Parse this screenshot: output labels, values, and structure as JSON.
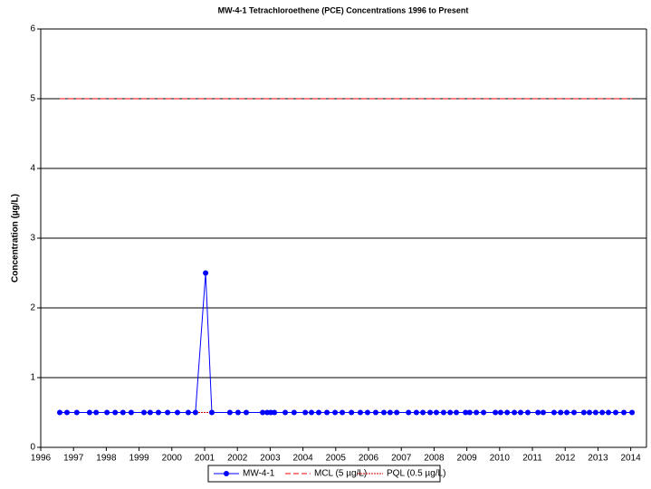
{
  "chart_data": {
    "type": "line",
    "title": "MW-4-1 Tetrachloroethene (PCE) Concentrations 1996 to Present",
    "y_label": "Concentration (µg/L)",
    "xlim": [
      1996,
      2014.48
    ],
    "xticks": [
      1996,
      1997,
      1998,
      1999,
      2000,
      2001,
      2002,
      2003,
      2004,
      2005,
      2006,
      2007,
      2008,
      2009,
      2010,
      2011,
      2012,
      2013,
      2014
    ],
    "ylim": [
      0,
      6
    ],
    "yticks": [
      0,
      1,
      2,
      3,
      4,
      5,
      6
    ],
    "grid": true,
    "legend": "bottom",
    "series": [
      {
        "name": "MW-4-1",
        "color": "#0000ff",
        "style": "solid",
        "marker": true,
        "x": [
          1996.58,
          1996.8,
          1997.1,
          1997.49,
          1997.69,
          1998.02,
          1998.27,
          1998.51,
          1998.76,
          1999.15,
          1999.34,
          1999.59,
          1999.87,
          2000.17,
          2000.5,
          2000.72,
          2001.03,
          2001.22,
          2001.77,
          2002.02,
          2002.27,
          2002.77,
          2002.91,
          2003.02,
          2003.13,
          2003.46,
          2003.73,
          2004.07,
          2004.26,
          2004.48,
          2004.73,
          2004.98,
          2005.2,
          2005.48,
          2005.75,
          2005.97,
          2006.22,
          2006.47,
          2006.66,
          2006.86,
          2007.22,
          2007.46,
          2007.66,
          2007.88,
          2008.07,
          2008.29,
          2008.49,
          2008.68,
          2008.96,
          2009.09,
          2009.29,
          2009.51,
          2009.87,
          2010.03,
          2010.23,
          2010.45,
          2010.64,
          2010.86,
          2011.17,
          2011.33,
          2011.66,
          2011.86,
          2012.05,
          2012.27,
          2012.57,
          2012.74,
          2012.93,
          2013.13,
          2013.32,
          2013.54,
          2013.79,
          2014.04
        ],
        "values": [
          0.5,
          0.5,
          0.5,
          0.5,
          0.5,
          0.5,
          0.5,
          0.5,
          0.5,
          0.5,
          0.5,
          0.5,
          0.5,
          0.5,
          0.5,
          0.5,
          2.5,
          0.5,
          0.5,
          0.5,
          0.5,
          0.5,
          0.5,
          0.5,
          0.5,
          0.5,
          0.5,
          0.5,
          0.5,
          0.5,
          0.5,
          0.5,
          0.5,
          0.5,
          0.5,
          0.5,
          0.5,
          0.5,
          0.5,
          0.5,
          0.5,
          0.5,
          0.5,
          0.5,
          0.5,
          0.5,
          0.5,
          0.5,
          0.5,
          0.5,
          0.5,
          0.5,
          0.5,
          0.5,
          0.5,
          0.5,
          0.5,
          0.5,
          0.5,
          0.5,
          0.5,
          0.5,
          0.5,
          0.5,
          0.5,
          0.5,
          0.5,
          0.5,
          0.5,
          0.5,
          0.5,
          0.5
        ]
      },
      {
        "name": "MCL (5 µg/L)",
        "color": "#ff0000",
        "style": "dashed",
        "marker": false,
        "x": [
          1996.58,
          2014.04
        ],
        "values": [
          5,
          5
        ]
      },
      {
        "name": "PQL (0.5 µg/L)",
        "color": "#cc0000",
        "style": "dotted",
        "marker": false,
        "x": [
          1996.58,
          2014.04
        ],
        "values": [
          0.5,
          0.5
        ]
      }
    ]
  }
}
